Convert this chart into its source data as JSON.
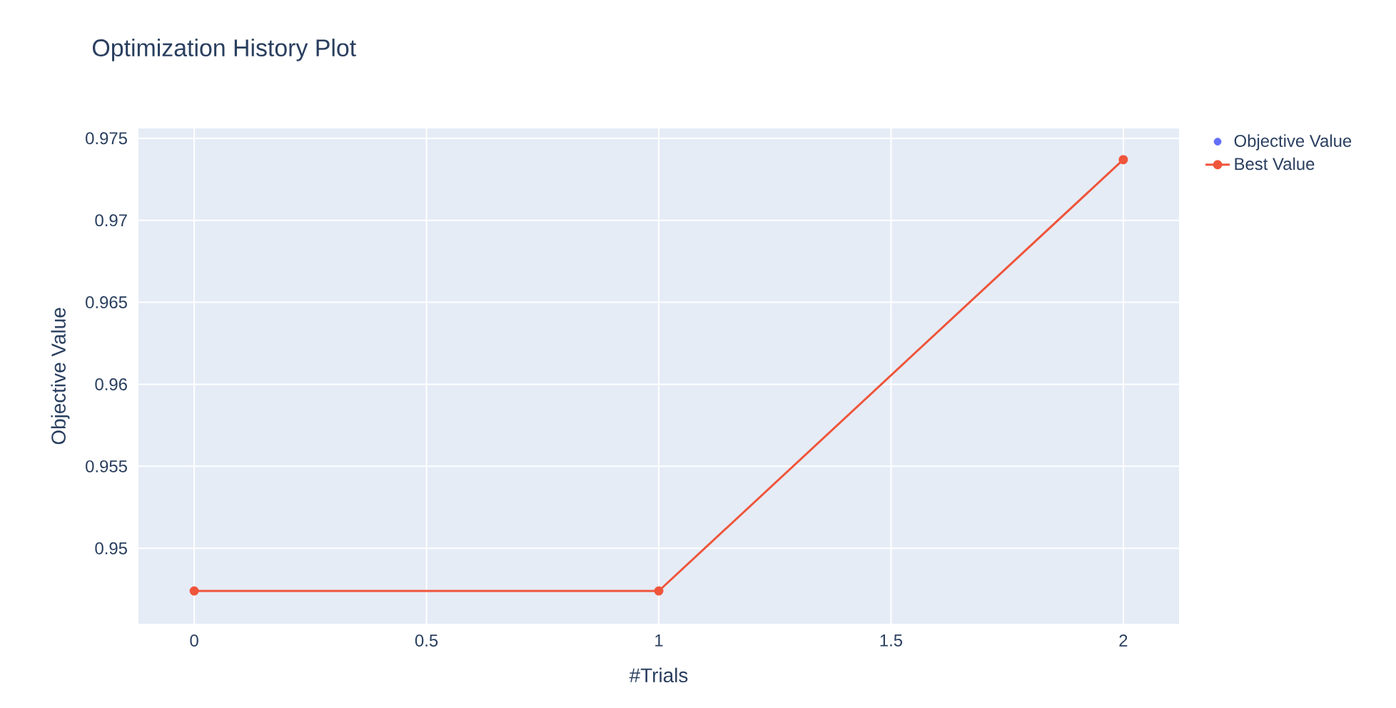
{
  "chart_data": {
    "type": "line",
    "title": "Optimization History Plot",
    "xlabel": "#Trials",
    "ylabel": "Objective Value",
    "x": [
      0,
      1,
      2
    ],
    "series": [
      {
        "name": "Objective Value",
        "type": "scatter",
        "color": "#636efa",
        "values": [
          null,
          null,
          null
        ]
      },
      {
        "name": "Best Value",
        "color": "#ef553b",
        "values": [
          0.9474,
          0.9474,
          0.9737
        ]
      }
    ],
    "xlim": [
      -0.12,
      2.12
    ],
    "ylim": [
      0.9454,
      0.9756
    ],
    "xticks": [
      0,
      0.5,
      1,
      1.5,
      2
    ],
    "yticks": [
      0.95,
      0.955,
      0.96,
      0.965,
      0.97,
      0.975
    ],
    "grid": true,
    "legend": "top right",
    "marker": "circle",
    "line_style": "solid"
  }
}
